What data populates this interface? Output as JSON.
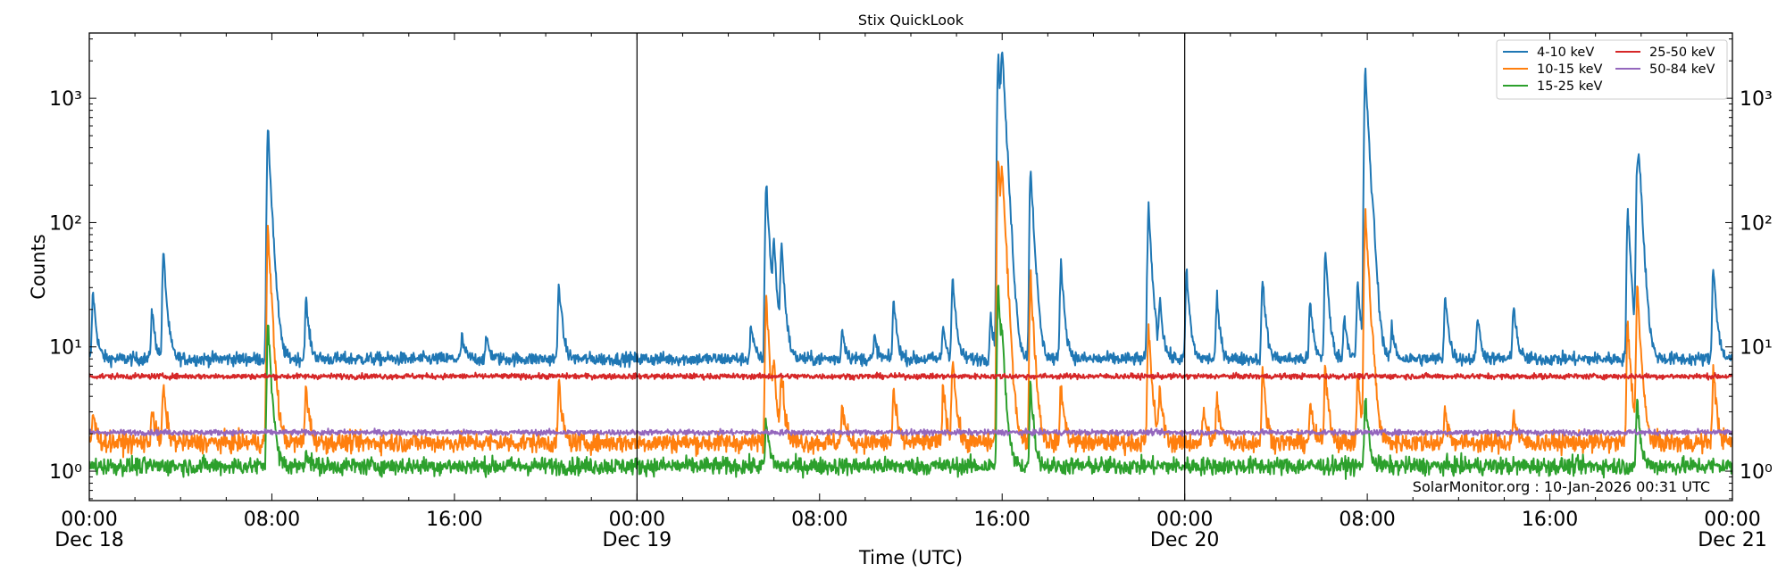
{
  "chart_data": {
    "type": "line",
    "title": "Stix QuickLook",
    "xlabel": "Time (UTC)",
    "ylabel": "Counts",
    "yscale": "log",
    "ylim": [
      0.58,
      3350
    ],
    "xlim": [
      "Dec 18 00:00",
      "Dec 21 00:00"
    ],
    "grid": false,
    "legend_position": "top-right",
    "annotation": "SolarMonitor.org : 10-Jan-2026 00:31 UTC",
    "x_ticks": [
      {
        "time": "Dec 18 00:00",
        "label": "00:00",
        "sublabel": "Dec 18"
      },
      {
        "time": "Dec 18 08:00",
        "label": "08:00",
        "sublabel": ""
      },
      {
        "time": "Dec 18 16:00",
        "label": "16:00",
        "sublabel": ""
      },
      {
        "time": "Dec 19 00:00",
        "label": "00:00",
        "sublabel": "Dec 19"
      },
      {
        "time": "Dec 19 08:00",
        "label": "08:00",
        "sublabel": ""
      },
      {
        "time": "Dec 19 16:00",
        "label": "16:00",
        "sublabel": ""
      },
      {
        "time": "Dec 20 00:00",
        "label": "00:00",
        "sublabel": "Dec 20"
      },
      {
        "time": "Dec 20 08:00",
        "label": "08:00",
        "sublabel": ""
      },
      {
        "time": "Dec 20 16:00",
        "label": "16:00",
        "sublabel": ""
      },
      {
        "time": "Dec 21 00:00",
        "label": "00:00",
        "sublabel": "Dec 21"
      }
    ],
    "y_ticks": [
      {
        "value": 1,
        "label": "10⁰"
      },
      {
        "value": 10,
        "label": "10¹"
      },
      {
        "value": 100,
        "label": "10²"
      },
      {
        "value": 1000,
        "label": "10³"
      }
    ],
    "day_boundaries": [
      "Dec 19 00:00",
      "Dec 20 00:00"
    ],
    "series": [
      {
        "name": "4-10 keV",
        "color": "#1f77b4",
        "background": 8.0,
        "peaks": [
          [
            "Dec 18 00:10",
            28
          ],
          [
            "Dec 18 02:45",
            20
          ],
          [
            "Dec 18 03:15",
            58
          ],
          [
            "Dec 18 07:50",
            530
          ],
          [
            "Dec 18 09:30",
            24
          ],
          [
            "Dec 18 16:20",
            12
          ],
          [
            "Dec 18 17:25",
            12
          ],
          [
            "Dec 18 20:35",
            33
          ],
          [
            "Dec 19 05:00",
            15
          ],
          [
            "Dec 19 05:40",
            210
          ],
          [
            "Dec 19 06:00",
            60
          ],
          [
            "Dec 19 06:20",
            65
          ],
          [
            "Dec 19 09:00",
            14
          ],
          [
            "Dec 19 10:25",
            12
          ],
          [
            "Dec 19 11:15",
            24
          ],
          [
            "Dec 19 13:25",
            15
          ],
          [
            "Dec 19 13:50",
            36
          ],
          [
            "Dec 19 15:30",
            18
          ],
          [
            "Dec 19 15:50",
            2100
          ],
          [
            "Dec 19 16:00",
            2000
          ],
          [
            "Dec 19 17:15",
            270
          ],
          [
            "Dec 19 18:35",
            48
          ],
          [
            "Dec 19 22:25",
            130
          ],
          [
            "Dec 19 22:55",
            23
          ],
          [
            "Dec 20 00:05",
            40
          ],
          [
            "Dec 20 01:25",
            24
          ],
          [
            "Dec 20 03:25",
            35
          ],
          [
            "Dec 20 05:30",
            23
          ],
          [
            "Dec 20 06:10",
            58
          ],
          [
            "Dec 20 07:00",
            18
          ],
          [
            "Dec 20 07:35",
            32
          ],
          [
            "Dec 20 07:55",
            1650
          ],
          [
            "Dec 20 08:15",
            40
          ],
          [
            "Dec 20 09:05",
            14
          ],
          [
            "Dec 20 11:25",
            27
          ],
          [
            "Dec 20 12:50",
            18
          ],
          [
            "Dec 20 14:25",
            23
          ],
          [
            "Dec 20 19:25",
            120
          ],
          [
            "Dec 20 19:50",
            300
          ],
          [
            "Dec 20 19:55",
            200
          ],
          [
            "Dec 20 23:10",
            45
          ]
        ]
      },
      {
        "name": "10-15 keV",
        "color": "#ff7f0e",
        "background": 1.7,
        "peaks": [
          [
            "Dec 18 00:10",
            3
          ],
          [
            "Dec 18 02:45",
            3.3
          ],
          [
            "Dec 18 03:15",
            4.8
          ],
          [
            "Dec 18 07:50",
            85
          ],
          [
            "Dec 18 09:30",
            5
          ],
          [
            "Dec 18 20:35",
            5
          ],
          [
            "Dec 19 05:40",
            25
          ],
          [
            "Dec 19 06:00",
            7
          ],
          [
            "Dec 19 06:20",
            6
          ],
          [
            "Dec 19 09:00",
            3.4
          ],
          [
            "Dec 19 11:15",
            4.5
          ],
          [
            "Dec 19 13:25",
            4.8
          ],
          [
            "Dec 19 13:50",
            8.5
          ],
          [
            "Dec 19 15:50",
            330
          ],
          [
            "Dec 19 16:00",
            190
          ],
          [
            "Dec 19 17:15",
            37
          ],
          [
            "Dec 19 18:35",
            5
          ],
          [
            "Dec 19 22:25",
            14
          ],
          [
            "Dec 19 22:55",
            4.5
          ],
          [
            "Dec 20 00:50",
            3.2
          ],
          [
            "Dec 20 01:25",
            4
          ],
          [
            "Dec 20 03:25",
            6.5
          ],
          [
            "Dec 20 05:30",
            3.5
          ],
          [
            "Dec 20 06:10",
            7
          ],
          [
            "Dec 20 07:35",
            6
          ],
          [
            "Dec 20 07:55",
            125
          ],
          [
            "Dec 20 08:15",
            4
          ],
          [
            "Dec 20 11:25",
            3.3
          ],
          [
            "Dec 20 14:25",
            3
          ],
          [
            "Dec 20 19:25",
            15
          ],
          [
            "Dec 20 19:50",
            30
          ],
          [
            "Dec 20 23:10",
            6.5
          ]
        ]
      },
      {
        "name": "15-25 keV",
        "color": "#2ca02c",
        "background": 1.1,
        "peaks": [
          [
            "Dec 18 07:50",
            16
          ],
          [
            "Dec 18 09:30",
            1.5
          ],
          [
            "Dec 19 05:40",
            2.5
          ],
          [
            "Dec 19 15:50",
            30
          ],
          [
            "Dec 19 16:00",
            6
          ],
          [
            "Dec 19 17:15",
            5
          ],
          [
            "Dec 20 07:55",
            4
          ],
          [
            "Dec 20 19:50",
            3.5
          ]
        ]
      },
      {
        "name": "25-50 keV",
        "color": "#d62728",
        "background": 5.8,
        "peaks": []
      },
      {
        "name": "50-84 keV",
        "color": "#9467bd",
        "background": 2.05,
        "peaks": []
      }
    ]
  }
}
